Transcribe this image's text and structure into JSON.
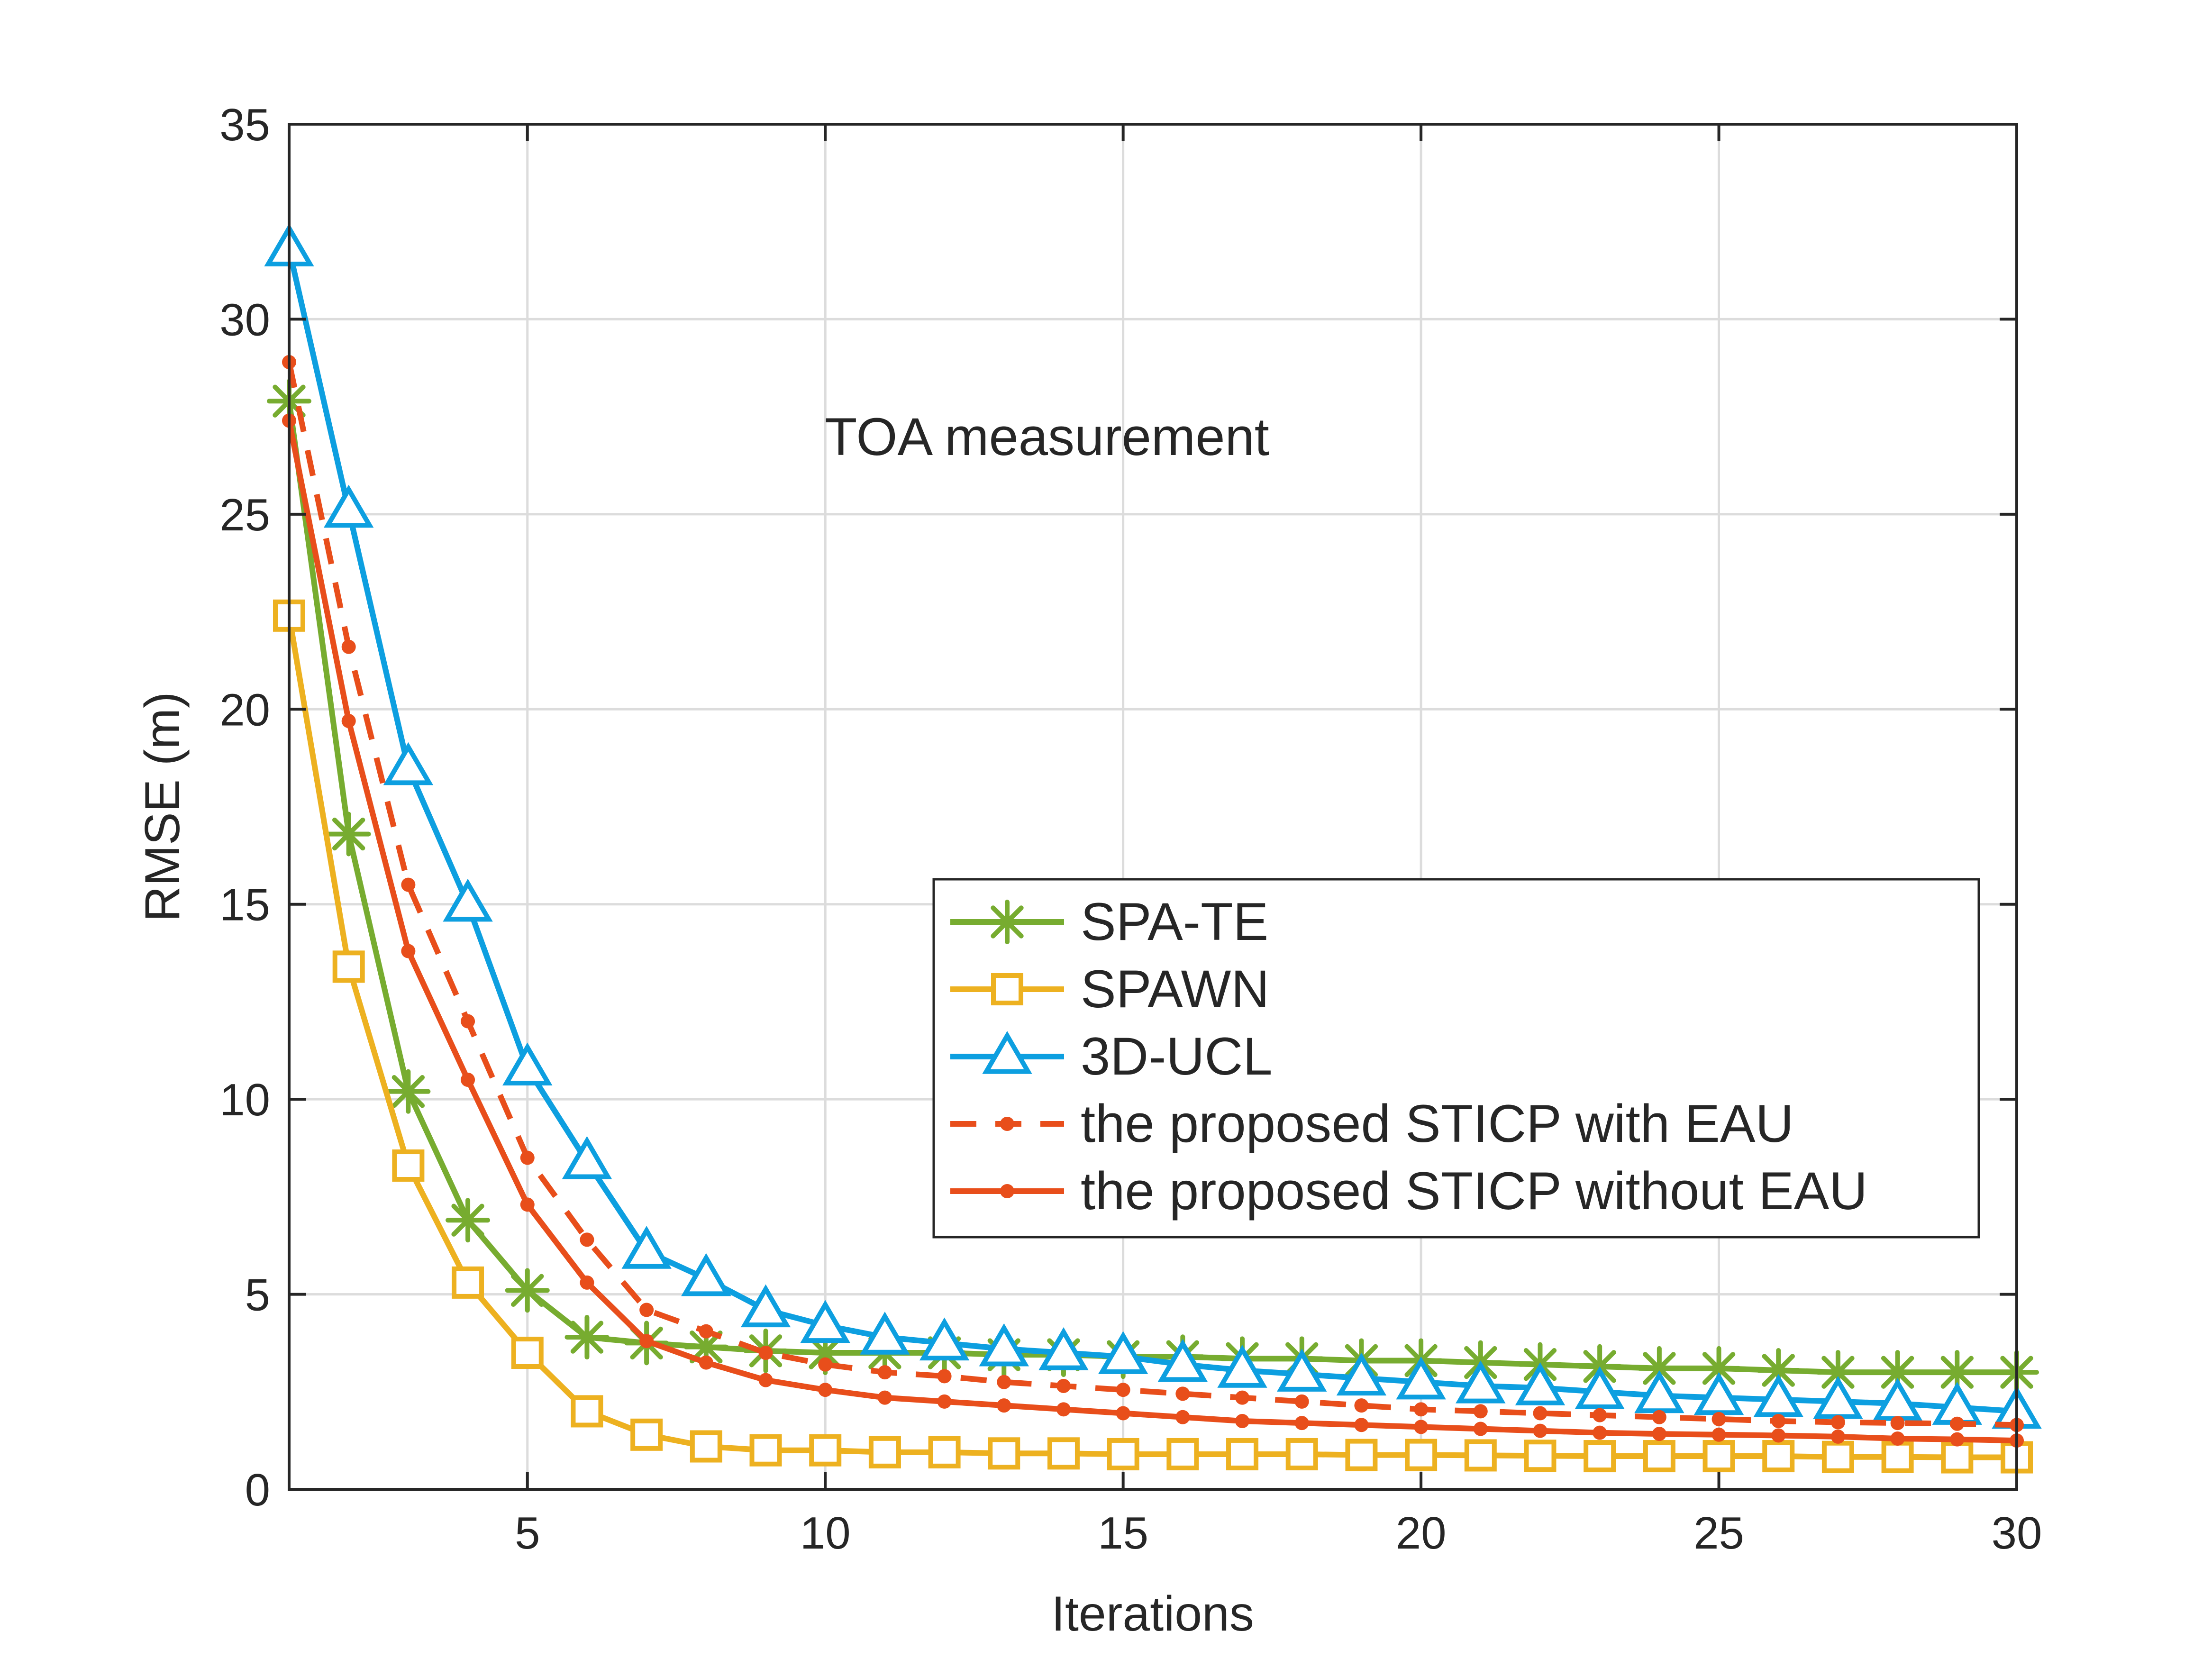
{
  "chart_data": {
    "type": "line",
    "title": "",
    "annotation": "TOA measurement",
    "xlabel": "Iterations",
    "ylabel": "RMSE (m)",
    "xlim": [
      1,
      30
    ],
    "ylim": [
      0,
      35
    ],
    "xticks": [
      5,
      10,
      15,
      20,
      25,
      30
    ],
    "yticks": [
      0,
      5,
      10,
      15,
      20,
      25,
      30,
      35
    ],
    "grid": true,
    "legend_position": "center-right",
    "x": [
      1,
      2,
      3,
      4,
      5,
      6,
      7,
      8,
      9,
      10,
      11,
      12,
      13,
      14,
      15,
      16,
      17,
      18,
      19,
      20,
      21,
      22,
      23,
      24,
      25,
      26,
      27,
      28,
      29,
      30
    ],
    "series": [
      {
        "name": "SPA-TE",
        "color": "#77ac30",
        "marker": "asterisk",
        "line": "solid",
        "values": [
          27.9,
          16.8,
          10.2,
          6.9,
          5.1,
          3.9,
          3.75,
          3.65,
          3.55,
          3.5,
          3.5,
          3.5,
          3.45,
          3.45,
          3.4,
          3.4,
          3.35,
          3.35,
          3.3,
          3.3,
          3.25,
          3.2,
          3.15,
          3.1,
          3.1,
          3.05,
          3.0,
          3.0,
          3.0,
          3.0
        ]
      },
      {
        "name": "SPAWN",
        "color": "#edb120",
        "marker": "square",
        "line": "solid",
        "values": [
          22.4,
          13.4,
          8.3,
          5.3,
          3.5,
          2.0,
          1.4,
          1.1,
          1.0,
          1.0,
          0.95,
          0.95,
          0.92,
          0.92,
          0.9,
          0.9,
          0.9,
          0.9,
          0.88,
          0.88,
          0.87,
          0.86,
          0.85,
          0.85,
          0.85,
          0.85,
          0.83,
          0.83,
          0.82,
          0.82
        ]
      },
      {
        "name": "3D-UCL",
        "color": "#0d9fe0",
        "marker": "triangle",
        "line": "solid",
        "values": [
          31.8,
          25.1,
          18.5,
          15.0,
          10.8,
          8.4,
          6.1,
          5.4,
          4.6,
          4.2,
          3.9,
          3.75,
          3.6,
          3.5,
          3.4,
          3.2,
          3.05,
          2.95,
          2.85,
          2.75,
          2.65,
          2.6,
          2.5,
          2.4,
          2.35,
          2.3,
          2.25,
          2.2,
          2.1,
          2.0
        ]
      },
      {
        "name": "the proposed STICP with EAU",
        "color": "#e84e1b",
        "marker": "dot",
        "line": "dashed",
        "values": [
          28.9,
          21.6,
          15.5,
          12.0,
          8.5,
          6.4,
          4.6,
          4.05,
          3.5,
          3.2,
          3.0,
          2.9,
          2.75,
          2.65,
          2.55,
          2.45,
          2.35,
          2.25,
          2.15,
          2.05,
          2.0,
          1.95,
          1.9,
          1.85,
          1.8,
          1.75,
          1.72,
          1.7,
          1.68,
          1.65
        ]
      },
      {
        "name": "the proposed STICP without EAU",
        "color": "#e84e1b",
        "marker": "dot",
        "line": "solid",
        "values": [
          27.4,
          19.7,
          13.8,
          10.5,
          7.3,
          5.3,
          3.8,
          3.25,
          2.8,
          2.55,
          2.35,
          2.25,
          2.15,
          2.05,
          1.95,
          1.85,
          1.75,
          1.7,
          1.65,
          1.6,
          1.55,
          1.5,
          1.45,
          1.42,
          1.4,
          1.38,
          1.35,
          1.3,
          1.28,
          1.25
        ]
      }
    ]
  }
}
